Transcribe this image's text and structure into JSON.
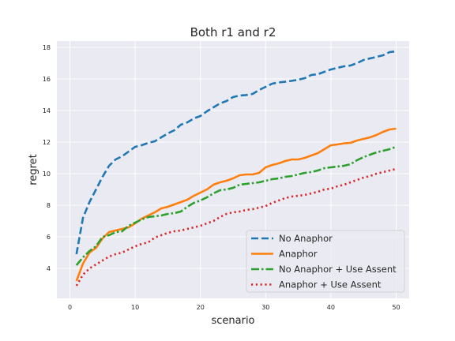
{
  "chart_data": {
    "type": "line",
    "title": "Both r1 and r2",
    "xlabel": "scenario",
    "ylabel": "regret",
    "xlim": [
      -2,
      52
    ],
    "ylim": [
      2.1,
      18.4
    ],
    "xticks": [
      0,
      10,
      20,
      30,
      40,
      50
    ],
    "yticks": [
      4,
      6,
      8,
      10,
      12,
      14,
      16,
      18
    ],
    "grid": true,
    "background": "#EAEAF2",
    "legend_position": "lower-right",
    "x": [
      1,
      2,
      3,
      4,
      5,
      6,
      7,
      8,
      9,
      10,
      11,
      12,
      13,
      14,
      15,
      16,
      17,
      18,
      19,
      20,
      21,
      22,
      23,
      24,
      25,
      26,
      27,
      28,
      29,
      30,
      31,
      32,
      33,
      34,
      35,
      36,
      37,
      38,
      39,
      40,
      41,
      42,
      43,
      44,
      45,
      46,
      47,
      48,
      49,
      50
    ],
    "series": [
      {
        "name": "No Anaphor",
        "color": "#1F77B4",
        "style": "dashed",
        "values": [
          4.9,
          7.2,
          8.2,
          9.0,
          9.8,
          10.5,
          10.9,
          11.1,
          11.4,
          11.7,
          11.8,
          11.95,
          12.05,
          12.3,
          12.55,
          12.75,
          13.1,
          13.25,
          13.5,
          13.65,
          13.95,
          14.2,
          14.45,
          14.6,
          14.85,
          14.95,
          14.98,
          15.05,
          15.3,
          15.5,
          15.7,
          15.78,
          15.82,
          15.88,
          15.95,
          16.05,
          16.25,
          16.3,
          16.45,
          16.6,
          16.7,
          16.8,
          16.85,
          17.0,
          17.2,
          17.3,
          17.4,
          17.5,
          17.7,
          17.75
        ]
      },
      {
        "name": "Anaphor",
        "color": "#FF7F0E",
        "style": "solid",
        "values": [
          3.2,
          4.3,
          5.0,
          5.3,
          5.9,
          6.3,
          6.4,
          6.5,
          6.6,
          6.85,
          7.15,
          7.35,
          7.55,
          7.8,
          7.9,
          8.05,
          8.2,
          8.35,
          8.6,
          8.8,
          9.0,
          9.3,
          9.45,
          9.55,
          9.7,
          9.9,
          9.95,
          9.95,
          10.05,
          10.4,
          10.55,
          10.65,
          10.8,
          10.9,
          10.9,
          11.0,
          11.15,
          11.3,
          11.55,
          11.8,
          11.85,
          11.92,
          11.95,
          12.1,
          12.2,
          12.3,
          12.45,
          12.65,
          12.8,
          12.85
        ]
      },
      {
        "name": "No Anaphor + Use Assent",
        "color": "#2CA02C",
        "style": "dashdot",
        "values": [
          4.2,
          4.7,
          5.1,
          5.4,
          6.0,
          6.1,
          6.3,
          6.35,
          6.7,
          6.9,
          7.1,
          7.25,
          7.3,
          7.35,
          7.45,
          7.5,
          7.6,
          7.9,
          8.15,
          8.3,
          8.5,
          8.75,
          8.95,
          9.0,
          9.1,
          9.3,
          9.35,
          9.4,
          9.45,
          9.55,
          9.65,
          9.7,
          9.8,
          9.85,
          9.95,
          10.05,
          10.1,
          10.2,
          10.35,
          10.4,
          10.45,
          10.5,
          10.6,
          10.85,
          11.05,
          11.2,
          11.35,
          11.45,
          11.55,
          11.7
        ]
      },
      {
        "name": "Anaphor + Use Assent",
        "color": "#D62728",
        "style": "dotted",
        "values": [
          2.9,
          3.6,
          4.0,
          4.25,
          4.5,
          4.75,
          4.9,
          5.0,
          5.2,
          5.4,
          5.55,
          5.65,
          5.95,
          6.1,
          6.25,
          6.35,
          6.4,
          6.5,
          6.6,
          6.7,
          6.85,
          7.0,
          7.25,
          7.45,
          7.55,
          7.6,
          7.7,
          7.75,
          7.85,
          7.95,
          8.15,
          8.3,
          8.45,
          8.55,
          8.6,
          8.65,
          8.75,
          8.85,
          9.0,
          9.05,
          9.2,
          9.3,
          9.45,
          9.6,
          9.75,
          9.85,
          10.0,
          10.1,
          10.2,
          10.3
        ]
      }
    ]
  }
}
